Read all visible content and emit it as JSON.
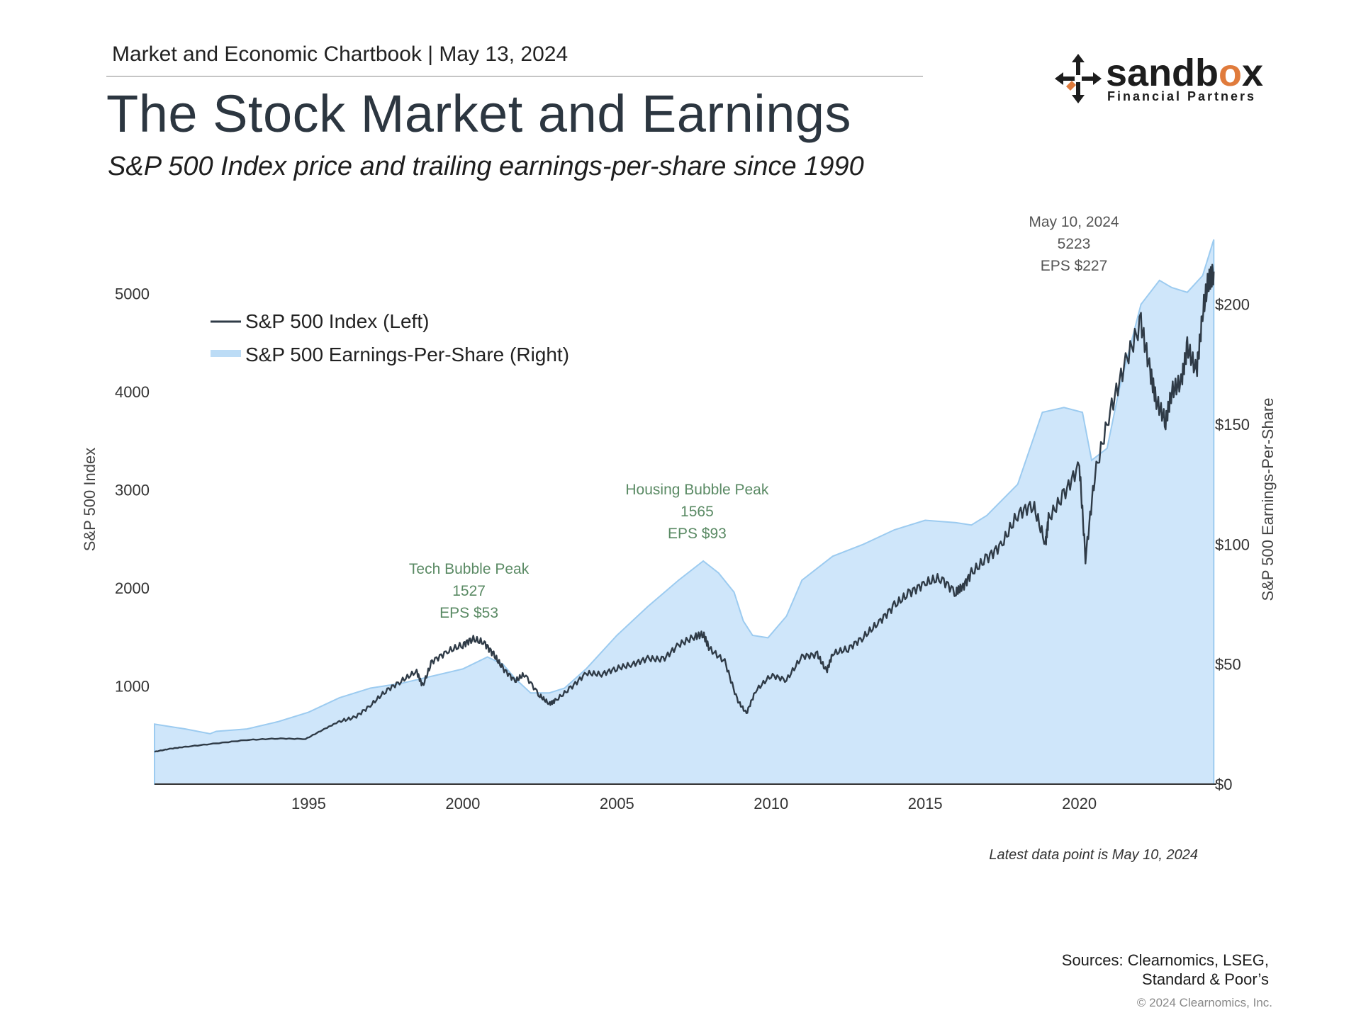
{
  "header": {
    "chartbook": "Market and Economic Chartbook | May 13, 2024",
    "title": "The Stock Market and Earnings",
    "subtitle": "S&P 500 Index price and trailing earnings-per-share since 1990"
  },
  "logo": {
    "word_prefix": "sandb",
    "word_o": "o",
    "word_suffix": "x",
    "tagline": "Financial Partners"
  },
  "colors": {
    "price_line": "#2f3b47",
    "eps_fill": "#cfe6fa",
    "eps_edge": "#9ccbf0",
    "annotation_green": "#5a8a64",
    "annotation_gray": "#555555"
  },
  "chart_data": {
    "type": "line",
    "x_range": [
      1990,
      2024.4
    ],
    "left_axis": {
      "label": "S&P 500 Index",
      "ylim": [
        0,
        5500
      ],
      "ticks": [
        1000,
        2000,
        3000,
        4000,
        5000
      ]
    },
    "right_axis": {
      "label": "S&P 500 Earnings-Per-Share",
      "ylim": [
        0,
        225
      ],
      "tick_values": [
        0,
        50,
        100,
        150,
        200
      ],
      "tick_labels": [
        "$0",
        "$50",
        "$100",
        "$150",
        "$200"
      ]
    },
    "x_ticks": [
      1995,
      2000,
      2005,
      2010,
      2015,
      2020
    ],
    "legend": [
      "S&P 500 Index (Left)",
      "S&P 500 Earnings-Per-Share (Right)"
    ],
    "series": [
      {
        "name": "S&P 500 Index (Left)",
        "axis": "left",
        "x": [
          1990,
          1990.5,
          1991,
          1992,
          1993,
          1994,
          1994.9,
          1995.5,
          1996,
          1996.5,
          1997,
          1997.5,
          1998,
          1998.5,
          1998.7,
          1999,
          1999.5,
          2000,
          2000.3,
          2000.7,
          2001,
          2001.3,
          2001.7,
          2002,
          2002.5,
          2002.8,
          2003,
          2003.5,
          2004,
          2004.5,
          2005,
          2005.5,
          2006,
          2006.5,
          2007,
          2007.5,
          2007.8,
          2008,
          2008.5,
          2008.9,
          2009.2,
          2009.5,
          2010,
          2010.5,
          2011,
          2011.5,
          2011.8,
          2012,
          2012.5,
          2013,
          2013.5,
          2014,
          2014.5,
          2015,
          2015.5,
          2016,
          2016.2,
          2016.5,
          2017,
          2017.5,
          2018,
          2018.5,
          2018.9,
          2019,
          2019.5,
          2020,
          2020.2,
          2020.5,
          2021,
          2021.5,
          2022,
          2022.3,
          2022.5,
          2022.8,
          2023,
          2023.3,
          2023.5,
          2023.8,
          2024,
          2024.2,
          2024.36
        ],
        "y": [
          330,
          360,
          380,
          415,
          450,
          465,
          460,
          560,
          640,
          680,
          800,
          950,
          1050,
          1150,
          1000,
          1250,
          1350,
          1420,
          1480,
          1440,
          1320,
          1180,
          1050,
          1120,
          900,
          820,
          850,
          980,
          1130,
          1120,
          1180,
          1220,
          1280,
          1270,
          1420,
          1500,
          1530,
          1380,
          1250,
          860,
          720,
          950,
          1110,
          1060,
          1300,
          1320,
          1150,
          1330,
          1380,
          1500,
          1650,
          1820,
          1950,
          2050,
          2100,
          1950,
          2000,
          2150,
          2300,
          2450,
          2750,
          2850,
          2450,
          2700,
          2950,
          3250,
          2300,
          3150,
          3800,
          4300,
          4700,
          4200,
          3900,
          3700,
          4000,
          4100,
          4450,
          4200,
          4800,
          5150,
          5223
        ]
      },
      {
        "name": "S&P 500 Earnings-Per-Share (Right)",
        "axis": "right",
        "x": [
          1990,
          1990.5,
          1991,
          1991.8,
          1992,
          1993,
          1994,
          1995,
          1996,
          1997,
          1998,
          1999,
          2000,
          2000.8,
          2001.3,
          2001.7,
          2002.2,
          2002.8,
          2003.3,
          2004,
          2005,
          2006,
          2007,
          2007.8,
          2008.3,
          2008.8,
          2009.1,
          2009.4,
          2009.9,
          2010.5,
          2011,
          2012,
          2013,
          2014,
          2015,
          2016,
          2016.5,
          2017,
          2018,
          2018.8,
          2019.5,
          2020.1,
          2020.4,
          2020.9,
          2021.3,
          2022,
          2022.6,
          2023,
          2023.5,
          2024,
          2024.36
        ],
        "y": [
          25,
          24,
          23,
          21,
          22,
          23,
          26,
          30,
          36,
          40,
          42,
          45,
          48,
          53,
          50,
          44,
          38,
          38,
          40,
          48,
          62,
          74,
          85,
          93,
          88,
          80,
          68,
          62,
          61,
          70,
          85,
          95,
          100,
          106,
          110,
          109,
          108,
          112,
          125,
          155,
          157,
          155,
          135,
          140,
          165,
          200,
          210,
          207,
          205,
          212,
          227
        ]
      }
    ],
    "annotations": [
      {
        "title": "Tech Bubble Peak",
        "value": "1527",
        "eps": "EPS $53",
        "x": 2000.2
      },
      {
        "title": "Housing Bubble Peak",
        "value": "1565",
        "eps": "EPS $93",
        "x": 2007.6
      },
      {
        "title": "May 10, 2024",
        "value": "5223",
        "eps": "EPS $227",
        "x": 2024.36
      }
    ]
  },
  "footnote": "Latest data point is May 10, 2024",
  "sources": [
    "Sources: Clearnomics, LSEG,",
    "Standard & Poor’s"
  ],
  "copyright": "© 2024 Clearnomics, Inc."
}
